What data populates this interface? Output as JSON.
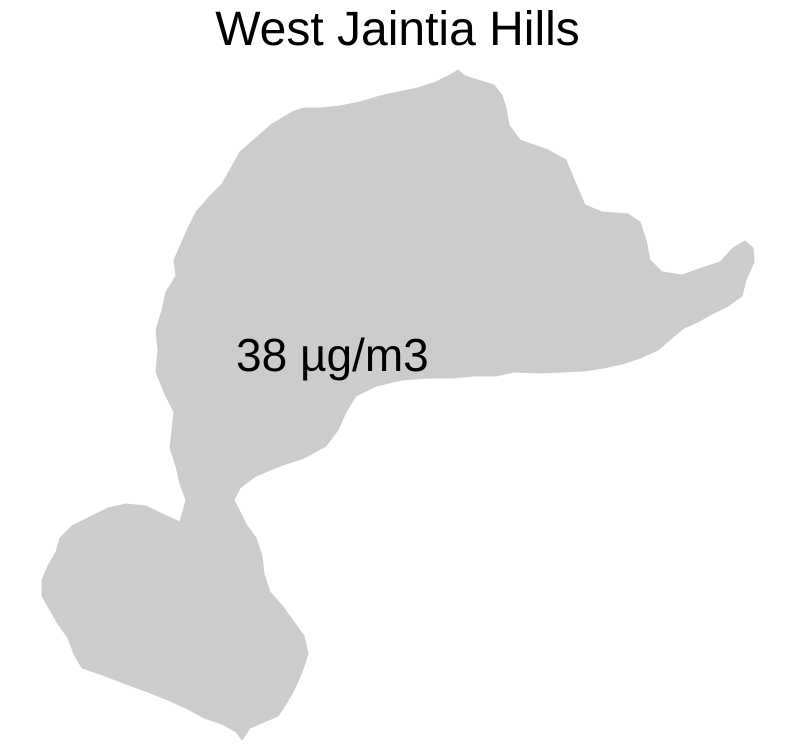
{
  "map": {
    "title": "West Jaintia Hills",
    "region_value_label": "38 µg/m3",
    "region_fill_color": "#cccccc",
    "background_color": "#ffffff"
  }
}
